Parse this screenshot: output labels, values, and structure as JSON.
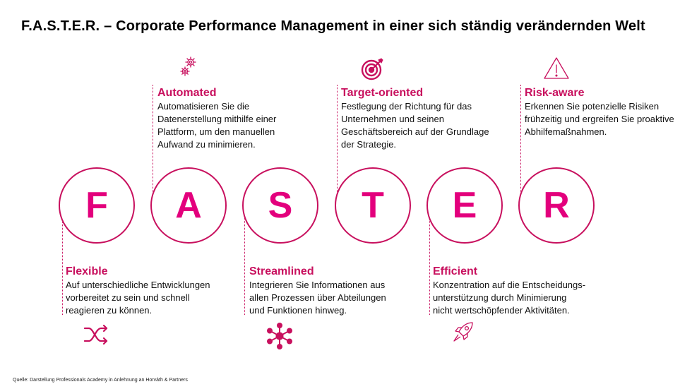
{
  "title": "F.A.S.T.E.R. – Corporate Performance Management in einer sich ständig verändernden Welt",
  "letters": [
    "F",
    "A",
    "S",
    "T",
    "E",
    "R"
  ],
  "items": {
    "flexible": {
      "heading": "Flexible",
      "text": "Auf unterschiedliche Entwicklungen\nvorbereitet zu sein und schnell\nreagieren zu können.",
      "icon": "shuffle-icon"
    },
    "automated": {
      "heading": "Automated",
      "text": "Automatisieren Sie die\nDatenerstellung mithilfe einer\nPlattform, um den manuellen\nAufwand zu minimieren.",
      "icon": "gears-icon"
    },
    "streamlined": {
      "heading": "Streamlined",
      "text": "Integrieren Sie Informationen aus\nallen Prozessen über Abteilungen\nund Funktionen hinweg.",
      "icon": "network-icon"
    },
    "target": {
      "heading": "Target-oriented",
      "text": "Festlegung der Richtung für das\nUnternehmen und seinen\nGeschäftsbereich auf der Grundlage\nder Strategie.",
      "icon": "target-icon"
    },
    "efficient": {
      "heading": "Efficient",
      "text": "Konzentration auf die Entscheidungs-\nunterstützung durch Minimierung\nnicht wertschöpfender Aktivitäten.",
      "icon": "rocket-icon"
    },
    "risk": {
      "heading": "Risk-aware",
      "text": "Erkennen Sie potenzielle Risiken\nfrühzeitig und ergreifen Sie proaktive\nAbhilfemaßnahmen.",
      "icon": "warning-icon"
    }
  },
  "colors": {
    "accent": "#c8105e",
    "letter": "#e3007d"
  },
  "source": "Quelle: Darstellung Professionals Academy in Anlehnung an Horváth & Partners"
}
